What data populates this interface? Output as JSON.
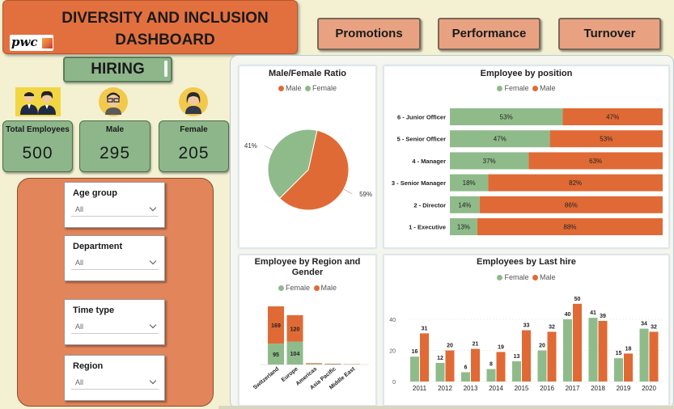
{
  "header": {
    "title_line1": "DIVERSITY AND INCLUSION",
    "title_line2": "DASHBOARD",
    "logo_text": "pwc"
  },
  "nav": [
    {
      "label": "Promotions"
    },
    {
      "label": "Performance"
    },
    {
      "label": "Turnover"
    }
  ],
  "page_label": "HIRING",
  "kpis": [
    {
      "label": "Total Employees",
      "value": "500",
      "icon": "people-icon"
    },
    {
      "label": "Male",
      "value": "295",
      "icon": "male-avatar-icon"
    },
    {
      "label": "Female",
      "value": "205",
      "icon": "female-avatar-icon"
    }
  ],
  "filters": [
    {
      "label": "Age group",
      "value": "All"
    },
    {
      "label": "Department",
      "value": "All"
    },
    {
      "label": "Time type",
      "value": "All"
    },
    {
      "label": "Region",
      "value": "All"
    }
  ],
  "colors": {
    "female": "#8fbb8a",
    "male": "#e06a35",
    "accent": "#e2703f"
  },
  "legend_labels": {
    "male": "Male",
    "female": "Female"
  },
  "chart_data": [
    {
      "type": "pie",
      "title": "Male/Female Ratio",
      "legend": [
        "Male",
        "Female"
      ],
      "slices": [
        {
          "name": "Male",
          "value": 59,
          "label": "59%"
        },
        {
          "name": "Female",
          "value": 41,
          "label": "41%"
        }
      ]
    },
    {
      "type": "bar",
      "orientation": "horizontal-stacked-100",
      "title": "Employee by position",
      "legend": [
        "Female",
        "Male"
      ],
      "categories": [
        "6 - Junior Officer",
        "5 - Senior Officer",
        "4 - Manager",
        "3 - Senior Manager",
        "2 - Director",
        "1 - Executive"
      ],
      "series": [
        {
          "name": "Female",
          "values": [
            53,
            47,
            37,
            18,
            14,
            13
          ]
        },
        {
          "name": "Male",
          "values": [
            47,
            53,
            63,
            82,
            86,
            88
          ]
        }
      ]
    },
    {
      "type": "bar",
      "orientation": "vertical-stacked",
      "title": "Employee by Region and Gender",
      "legend": [
        "Female",
        "Male"
      ],
      "categories": [
        "Switzerland",
        "Europe",
        "Americas",
        "Asia Pacific",
        "Middle East"
      ],
      "series": [
        {
          "name": "Female",
          "values": [
            95,
            104,
            3,
            2,
            1
          ]
        },
        {
          "name": "Male",
          "values": [
            169,
            120,
            3,
            2,
            1
          ]
        }
      ]
    },
    {
      "type": "bar",
      "orientation": "vertical-clustered",
      "title": "Employees by Last hire",
      "legend": [
        "Female",
        "Male"
      ],
      "categories": [
        "2011",
        "2012",
        "2013",
        "2014",
        "2015",
        "2016",
        "2017",
        "2018",
        "2019",
        "2020"
      ],
      "series": [
        {
          "name": "Female",
          "values": [
            16,
            12,
            6,
            8,
            13,
            20,
            40,
            41,
            15,
            34
          ]
        },
        {
          "name": "Male",
          "values": [
            31,
            20,
            21,
            19,
            33,
            32,
            50,
            39,
            18,
            32
          ]
        }
      ],
      "yticks": [
        0,
        20,
        40
      ],
      "ylim": [
        0,
        52
      ]
    }
  ]
}
